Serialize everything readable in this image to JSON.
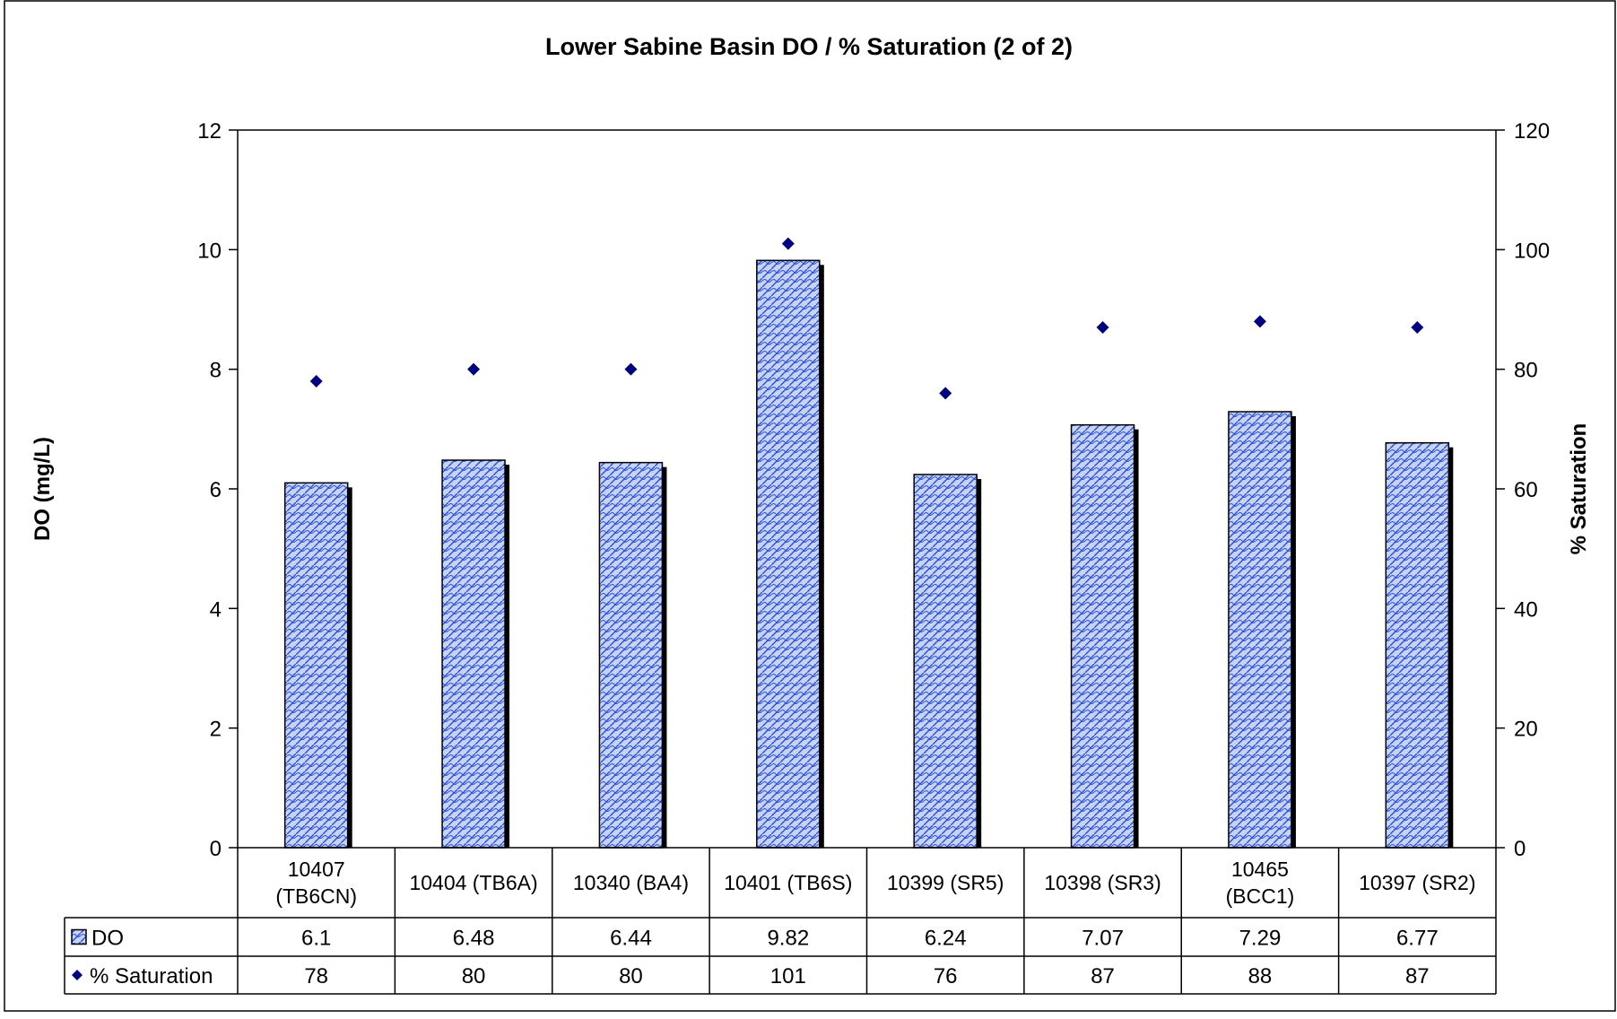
{
  "chart_data": {
    "type": "bar",
    "title": "Lower Sabine Basin DO / % Saturation (2 of 2)",
    "ylabel": "DO (mg/L)",
    "y2label": "% Saturation",
    "ylim": [
      0,
      12
    ],
    "y2lim": [
      0,
      120
    ],
    "yticks": [
      "0",
      "2",
      "4",
      "6",
      "8",
      "10",
      "12"
    ],
    "y2ticks": [
      "0",
      "20",
      "40",
      "60",
      "80",
      "100",
      "120"
    ],
    "categories": [
      [
        "10407",
        "(TB6CN)"
      ],
      [
        "10404 (TB6A)"
      ],
      [
        "10340 (BA4)"
      ],
      [
        "10401 (TB6S)"
      ],
      [
        "10399 (SR5)"
      ],
      [
        "10398 (SR3)"
      ],
      [
        "10465",
        "(BCC1)"
      ],
      [
        "10397 (SR2)"
      ]
    ],
    "series": [
      {
        "name": "DO",
        "type": "bar",
        "axis": "left",
        "values": [
          6.1,
          6.48,
          6.44,
          9.82,
          6.24,
          7.07,
          7.29,
          6.77
        ],
        "labels": [
          "6.1",
          "6.48",
          "6.44",
          "9.82",
          "6.24",
          "7.07",
          "7.29",
          "6.77"
        ]
      },
      {
        "name": "% Saturation",
        "type": "scatter",
        "axis": "right",
        "marker": "diamond",
        "values": [
          78,
          80,
          80,
          101,
          76,
          87,
          88,
          87
        ],
        "labels": [
          "78",
          "80",
          "80",
          "101",
          "76",
          "87",
          "88",
          "87"
        ]
      }
    ],
    "legend": "data-table",
    "grid": false,
    "colors": {
      "bar_fill": "#c6d3f5",
      "bar_pattern": "#2b4fd8",
      "marker": "#000080",
      "axis": "#000000"
    }
  }
}
